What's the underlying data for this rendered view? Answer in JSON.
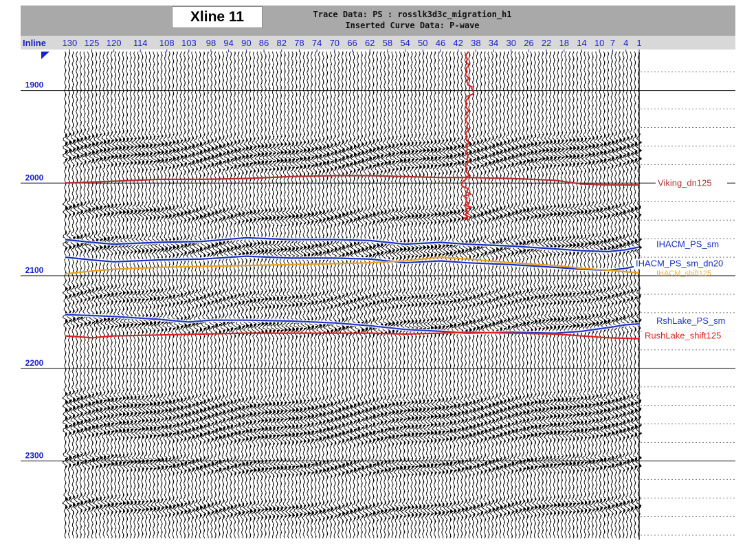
{
  "header": {
    "xline_title": "Xline 11",
    "trace_line": "Trace Data: PS : rosslk3d3c_migration_h1",
    "curve_line": "Inserted Curve Data:  P-wave"
  },
  "chart_data": {
    "type": "line",
    "x_axis_label": "Inline",
    "x_ticks": [
      130,
      125,
      120,
      114,
      108,
      103,
      98,
      94,
      90,
      86,
      82,
      78,
      74,
      70,
      66,
      62,
      58,
      54,
      50,
      46,
      42,
      38,
      34,
      30,
      26,
      22,
      18,
      14,
      10,
      7,
      4,
      1
    ],
    "xlim": [
      131,
      1
    ],
    "y_ticks": [
      1900,
      2000,
      2100,
      2200,
      2300
    ],
    "ylim": [
      1858,
      2385
    ],
    "grid": true,
    "background": "seismic wiggle traces",
    "colors": {
      "axis_text": "#1a22cc",
      "title_band": "#a9a9a9"
    },
    "series": [
      {
        "name": "Viking_dn125",
        "color": "#b03030",
        "x": [
          131,
          120,
          110,
          100,
          90,
          80,
          70,
          62,
          54,
          46,
          40,
          30,
          20,
          14,
          8,
          1
        ],
        "y": [
          2000,
          1998,
          1996,
          1996,
          1995,
          1993,
          1992,
          1992,
          1993,
          1994,
          1994,
          1995,
          1997,
          2001,
          2002,
          2002
        ]
      },
      {
        "name": "IHACM_PS_sm",
        "color": "#1830c0",
        "x": [
          131,
          125,
          120,
          110,
          100,
          90,
          80,
          70,
          62,
          54,
          46,
          40,
          30,
          20,
          14,
          8,
          4,
          1
        ],
        "y": [
          2061,
          2064,
          2066,
          2064,
          2063,
          2059,
          2061,
          2061,
          2062,
          2066,
          2064,
          2066,
          2068,
          2071,
          2073,
          2074,
          2072,
          2069
        ]
      },
      {
        "name": "IHACM_PS_sm_dn20",
        "color": "#1830c0",
        "x": [
          131,
          125,
          120,
          110,
          100,
          90,
          80,
          70,
          62,
          54,
          46,
          40,
          30,
          20,
          14,
          8,
          4,
          1
        ],
        "y": [
          2080,
          2083,
          2085,
          2083,
          2082,
          2079,
          2081,
          2081,
          2082,
          2086,
          2084,
          2086,
          2088,
          2091,
          2093,
          2094,
          2092,
          2089
        ]
      },
      {
        "name": "IHACM_shift125",
        "color": "#e8a020",
        "x": [
          131,
          125,
          120,
          110,
          100,
          90,
          80,
          70,
          62,
          54,
          46,
          40,
          30,
          20,
          14,
          8,
          1
        ],
        "y": [
          2098,
          2095,
          2093,
          2091,
          2090,
          2089,
          2088,
          2087,
          2086,
          2084,
          2080,
          2082,
          2086,
          2089,
          2092,
          2094,
          2097
        ]
      },
      {
        "name": "RshLake_PS_sm",
        "color": "#2438d0",
        "x": [
          131,
          125,
          120,
          110,
          103,
          98,
          90,
          80,
          70,
          62,
          54,
          46,
          40,
          30,
          20,
          14,
          8,
          4,
          1
        ],
        "y": [
          2142,
          2143,
          2144,
          2147,
          2150,
          2148,
          2148,
          2149,
          2151,
          2154,
          2158,
          2160,
          2162,
          2161,
          2162,
          2160,
          2156,
          2153,
          2152
        ]
      },
      {
        "name": "RushLake_shift125",
        "color": "#e02020",
        "x": [
          131,
          125,
          120,
          110,
          100,
          90,
          80,
          70,
          62,
          54,
          46,
          40,
          30,
          20,
          14,
          8,
          1
        ],
        "y": [
          2165,
          2167,
          2165,
          2164,
          2163,
          2162,
          2162,
          2162,
          2162,
          2163,
          2162,
          2161,
          2162,
          2163,
          2165,
          2167,
          2168
        ]
      },
      {
        "name": "P-wave",
        "color": "#e02020"
      }
    ]
  }
}
